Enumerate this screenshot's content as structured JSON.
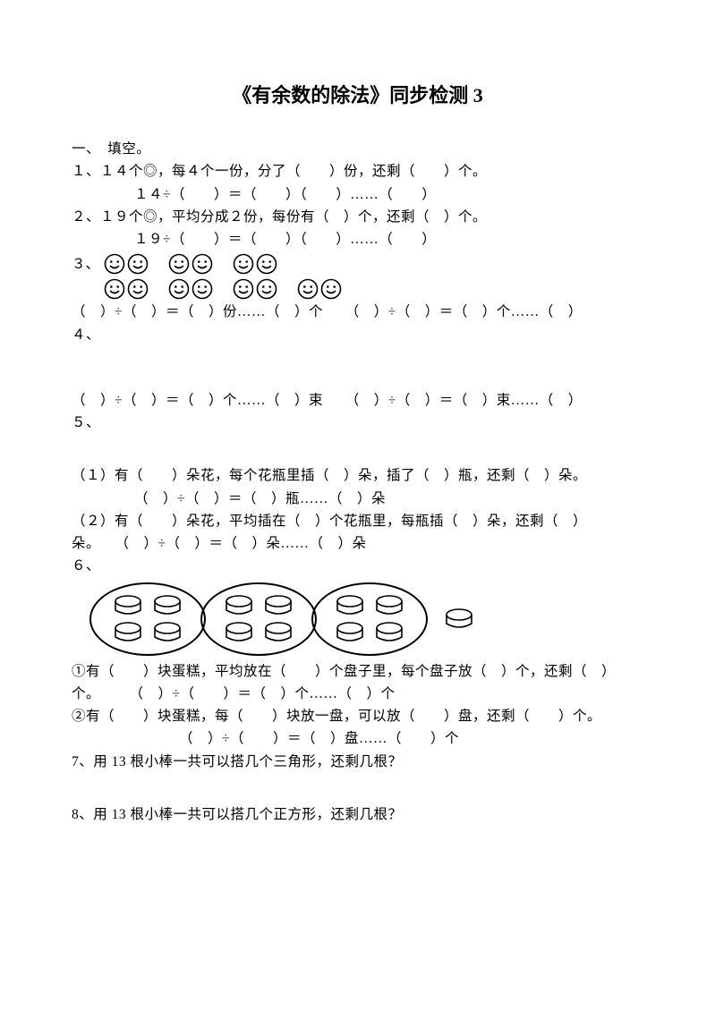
{
  "title": "《有余数的除法》同步检测 3",
  "section1": {
    "header": "一、　填空。",
    "q1": {
      "line1": "１、１４个◎，每４个一份，分了（　　）份，还剩（　　）个。",
      "line2": "１４÷（　　）＝（　　）（　　）……（　　）"
    },
    "q2": {
      "line1": "２、１９个◎，平均分成２份，每份有（　）个，还剩（　）个。",
      "line2": "１９÷（　　）＝（　　）（　　）……（　　）"
    },
    "q3": {
      "label": "３、",
      "smiley_layout": {
        "row1_groups": [
          2,
          2,
          2
        ],
        "row2_groups": [
          2,
          2,
          2,
          2
        ]
      },
      "eq_left": "（　）÷（　）＝（　）份……（　）个",
      "eq_right": "（　）÷（　）＝（　）个……（　）"
    },
    "q4": {
      "label": "４、",
      "eq_left": "（　）÷（　）＝（　）个……（　）束",
      "eq_right": "（　）÷（　）＝（　）束……（　）"
    },
    "q5": {
      "label": "５、",
      "part1_line1": "（１）有（　　）朵花，每个花瓶里插（　）朵，插了（　）瓶，还剩（　）朵。",
      "part1_line2": "（　）÷（　）＝（　）瓶……（　）朵",
      "part2_line1": "（２）有（　　）朵花，平均插在（　）个花瓶里，每瓶插（　）朵，还剩（　）",
      "part2_line1b": "朵。　　（　）÷（　）＝（　）朵……（　）朵"
    },
    "q6": {
      "label": "６、",
      "cake_layout": {
        "plates": 3,
        "cakes_per_plate": 4,
        "extra_cakes": 1
      },
      "p1_line1": "①有（　　）块蛋糕，平均放在（　　）个盘子里，每个盘子放（　）个，还剩（　）",
      "p1_line2": "个。　　　（　）÷（　　）＝（　）个……（　）个",
      "p2_line1": "②有（　　）块蛋糕，每（　　）块放一盘，可以放（　　）盘，还剩（　　）个。",
      "p2_line2": "（　）÷（　　）＝（　）盘……（　　）个"
    },
    "q7": "7、用 13 根小棒一共可以搭几个三角形，还剩几根？",
    "q8": "8、用 13  根小棒一共可以搭几个正方形，还剩几根？"
  },
  "style": {
    "text_color": "#000000",
    "bg_color": "#ffffff",
    "body_font_size": 15.5,
    "title_font_size": 22,
    "smiley_stroke": "#000000",
    "cake_stroke": "#000000"
  }
}
